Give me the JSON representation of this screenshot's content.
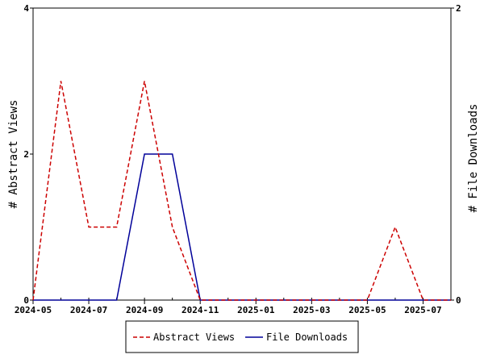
{
  "chart_data": {
    "type": "line",
    "x_tick_labels": [
      "2024-05",
      "2024-07",
      "2024-09",
      "2024-11",
      "2025-01",
      "2025-03",
      "2025-05",
      "2025-07"
    ],
    "x": [
      "2024-05",
      "2024-06",
      "2024-07",
      "2024-08",
      "2024-09",
      "2024-10",
      "2024-11",
      "2024-12",
      "2025-01",
      "2025-02",
      "2025-03",
      "2025-04",
      "2025-05",
      "2025-06",
      "2025-07",
      "2025-08"
    ],
    "series": [
      {
        "name": "Abstract Views",
        "axis": "left",
        "color": "#cc0000",
        "dash": "dashed",
        "values": [
          0,
          3,
          1,
          1,
          3,
          1,
          0,
          0,
          0,
          0,
          0,
          0,
          0,
          1,
          0,
          0
        ]
      },
      {
        "name": "File Downloads",
        "axis": "right",
        "color": "#000099",
        "dash": "solid",
        "values": [
          0,
          0,
          0,
          0,
          1,
          1,
          0,
          0,
          0,
          0,
          0,
          0,
          0,
          0,
          0,
          0
        ]
      }
    ],
    "ylabel_left": "# Abstract Views",
    "ylabel_right": "# File Downloads",
    "ylim_left": [
      0,
      4
    ],
    "ylim_right": [
      0,
      2
    ],
    "yticks_left": [
      0,
      2,
      4
    ],
    "yticks_right": [
      0,
      2
    ],
    "xlim": [
      "2024-05",
      "2025-08"
    ],
    "legend_position": "bottom-center",
    "grid": false
  }
}
